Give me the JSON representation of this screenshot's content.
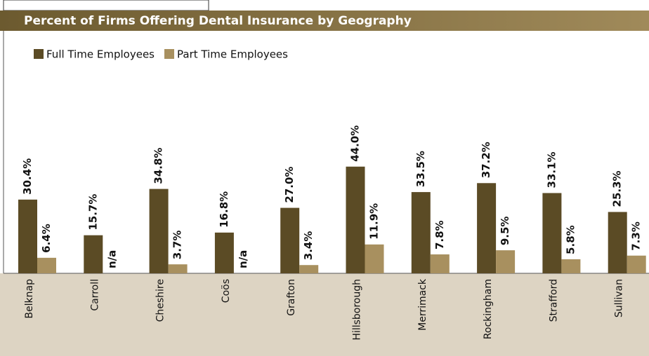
{
  "chart_data": {
    "type": "bar",
    "title": "Percent of Firms Offering Dental Insurance by Geography",
    "categories": [
      "Belknap",
      "Carroll",
      "Cheshire",
      "Coös",
      "Grafton",
      "Hillsborough",
      "Merrimack",
      "Rockingham",
      "Strafford",
      "Sullivan"
    ],
    "series": [
      {
        "name": "Full Time Employees",
        "color": "#5b4b25",
        "values": [
          30.4,
          15.7,
          34.8,
          16.8,
          27.0,
          44.0,
          33.5,
          37.2,
          33.1,
          25.3
        ],
        "value_labels": [
          "30.4%",
          "15.7%",
          "34.8%",
          "16.8%",
          "27.0%",
          "44.0%",
          "33.5%",
          "37.2%",
          "33.1%",
          "25.3%"
        ]
      },
      {
        "name": "Part Time Employees",
        "color": "#a8905f",
        "values": [
          6.4,
          null,
          3.7,
          null,
          3.4,
          11.9,
          7.8,
          9.5,
          5.8,
          7.3
        ],
        "value_labels": [
          "6.4%",
          "n/a",
          "3.7%",
          "n/a",
          "3.4%",
          "11.9%",
          "7.8%",
          "9.5%",
          "5.8%",
          "7.3%"
        ]
      }
    ],
    "ylim": [
      0,
      100
    ],
    "legend": "top-left"
  }
}
